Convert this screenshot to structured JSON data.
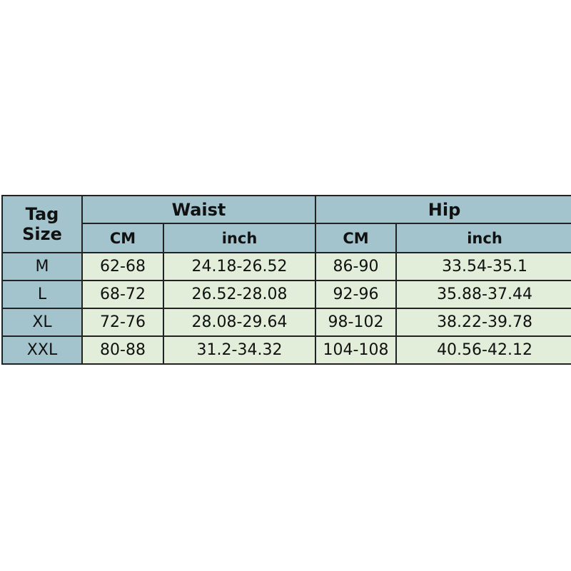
{
  "header": {
    "tag_size": [
      "Tag",
      "Size"
    ],
    "waist": "Waist",
    "hip": "Hip",
    "cm": "CM",
    "inch": "inch"
  },
  "colors": {
    "header_bg": "#a3c4cc",
    "cell_bg": "#e2eed9",
    "border": "#222222"
  },
  "rows": [
    {
      "size": "M",
      "waist_cm": "62-68",
      "waist_inch": "24.18-26.52",
      "hip_cm": "86-90",
      "hip_inch": "33.54-35.1"
    },
    {
      "size": "L",
      "waist_cm": "68-72",
      "waist_inch": "26.52-28.08",
      "hip_cm": "92-96",
      "hip_inch": "35.88-37.44"
    },
    {
      "size": "XL",
      "waist_cm": "72-76",
      "waist_inch": "28.08-29.64",
      "hip_cm": "98-102",
      "hip_inch": "38.22-39.78"
    },
    {
      "size": "XXL",
      "waist_cm": "80-88",
      "waist_inch": "31.2-34.32",
      "hip_cm": "104-108",
      "hip_inch": "40.56-42.12"
    }
  ]
}
